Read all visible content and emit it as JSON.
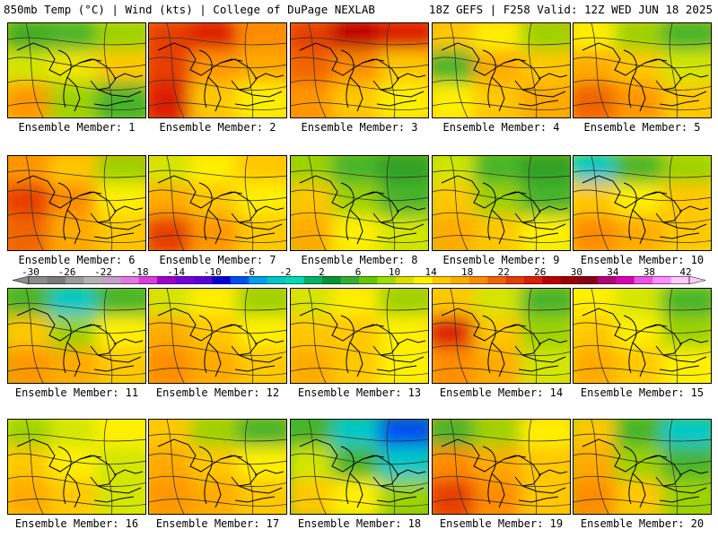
{
  "header": {
    "title": "850mb Temp (°C) | Wind (kts) | College of DuPage NEXLAB",
    "valid": "18Z GEFS | F258 Valid: 12Z WED JUN 18 2025"
  },
  "colorbar": {
    "labels": [
      "-30",
      "-26",
      "-22",
      "-18",
      "-14",
      "-10",
      "-6",
      "-2",
      "2",
      "6",
      "10",
      "14",
      "18",
      "22",
      "26",
      "30",
      "34",
      "38",
      "42"
    ],
    "colors": [
      "#8c8c8c",
      "#7a7a7a",
      "#9a9a9a",
      "#b4b4b4",
      "#c8a0c8",
      "#e178e1",
      "#dc3cdc",
      "#a000c8",
      "#7800dc",
      "#5a00dc",
      "#0000dc",
      "#0050f0",
      "#00a0f0",
      "#00c8c8",
      "#00dcb4",
      "#00b464",
      "#009632",
      "#32af32",
      "#64c800",
      "#a0dc00",
      "#dcdc00",
      "#fff000",
      "#ffc800",
      "#ffaa00",
      "#ff8c00",
      "#f06400",
      "#e63c00",
      "#dc1e00",
      "#be0000",
      "#a00000",
      "#8c0014",
      "#b4007a",
      "#dc00b4",
      "#f050e6",
      "#ff8cff",
      "#ffc8ff"
    ]
  },
  "panels": [
    {
      "label": "Ensemble Member: 1",
      "colors": [
        "#3caa28",
        "#46b42c",
        "#9cd200",
        "#d2e600",
        "#f0e600",
        "#ffc800",
        "#ff9600",
        "#9cd200",
        "#46b42c"
      ]
    },
    {
      "label": "Ensemble Member: 2",
      "colors": [
        "#e63c00",
        "#dc1e00",
        "#ff8c00",
        "#e63c00",
        "#ff9600",
        "#ffaa00",
        "#dc1e00",
        "#ffc800",
        "#fff000"
      ]
    },
    {
      "label": "Ensemble Member: 3",
      "colors": [
        "#e63c00",
        "#be0000",
        "#dc1e00",
        "#f06400",
        "#ff8c00",
        "#ffc800",
        "#ff9600",
        "#ffc800",
        "#fff000"
      ]
    },
    {
      "label": "Ensemble Member: 4",
      "colors": [
        "#ffc800",
        "#fff000",
        "#9cd200",
        "#46b42c",
        "#ffaa00",
        "#ffc800",
        "#fff000",
        "#ffc800",
        "#ffaa00"
      ]
    },
    {
      "label": "Ensemble Member: 5",
      "colors": [
        "#fff000",
        "#9cd200",
        "#46b42c",
        "#ffaa00",
        "#ffc800",
        "#d2e600",
        "#f06400",
        "#ff9600",
        "#ffc800"
      ]
    },
    {
      "label": "Ensemble Member: 6",
      "colors": [
        "#ff9600",
        "#ffc800",
        "#9cd200",
        "#e63c00",
        "#ff8c00",
        "#fff000",
        "#f06400",
        "#ffaa00",
        "#ffc800"
      ]
    },
    {
      "label": "Ensemble Member: 7",
      "colors": [
        "#d2e600",
        "#fff000",
        "#ffc800",
        "#ffaa00",
        "#ffc800",
        "#fff000",
        "#e63c00",
        "#ff9600",
        "#ffc800"
      ]
    },
    {
      "label": "Ensemble Member: 8",
      "colors": [
        "#9cd200",
        "#46b42c",
        "#32a028",
        "#ffc800",
        "#9cd200",
        "#46b42c",
        "#ffaa00",
        "#fff000",
        "#d2e600"
      ]
    },
    {
      "label": "Ensemble Member: 9",
      "colors": [
        "#d2e600",
        "#46b42c",
        "#32a028",
        "#ffc800",
        "#9cd200",
        "#46b42c",
        "#ffaa00",
        "#ffc800",
        "#fff000"
      ]
    },
    {
      "label": "Ensemble Member: 10",
      "colors": [
        "#00c8c8",
        "#46b42c",
        "#9cd200",
        "#ffc800",
        "#fff000",
        "#ffc800",
        "#ff8c00",
        "#ffaa00",
        "#ffc800"
      ]
    },
    {
      "label": "Ensemble Member: 11",
      "colors": [
        "#46b42c",
        "#00c8c8",
        "#46b42c",
        "#ffc800",
        "#9cd200",
        "#fff000",
        "#ff9600",
        "#ffaa00",
        "#ffc800"
      ]
    },
    {
      "label": "Ensemble Member: 12",
      "colors": [
        "#d2e600",
        "#fff000",
        "#9cd200",
        "#ffaa00",
        "#ffc800",
        "#fff000",
        "#ff8c00",
        "#ffaa00",
        "#ffc800"
      ]
    },
    {
      "label": "Ensemble Member: 13",
      "colors": [
        "#d2e600",
        "#fff000",
        "#9cd200",
        "#ffc800",
        "#ffc800",
        "#fff000",
        "#ffaa00",
        "#ffc800",
        "#fff000"
      ]
    },
    {
      "label": "Ensemble Member: 14",
      "colors": [
        "#ffc800",
        "#d2e600",
        "#46b42c",
        "#dc1e00",
        "#ffc800",
        "#9cd200",
        "#ff8c00",
        "#ffaa00",
        "#d2e600"
      ]
    },
    {
      "label": "Ensemble Member: 15",
      "colors": [
        "#fff000",
        "#d2e600",
        "#46b42c",
        "#ffc800",
        "#fff000",
        "#9cd200",
        "#ffaa00",
        "#ffc800",
        "#fff000"
      ]
    },
    {
      "label": "Ensemble Member: 16",
      "colors": [
        "#9cd200",
        "#d2e600",
        "#fff000",
        "#ffc800",
        "#fff000",
        "#d2e600",
        "#ffaa00",
        "#ffc800",
        "#d2e600"
      ]
    },
    {
      "label": "Ensemble Member: 17",
      "colors": [
        "#ffc800",
        "#9cd200",
        "#46b42c",
        "#ffaa00",
        "#ffc800",
        "#fff000",
        "#ff9600",
        "#ffaa00",
        "#ffc800"
      ]
    },
    {
      "label": "Ensemble Member: 18",
      "colors": [
        "#46b42c",
        "#00c8c8",
        "#0050f0",
        "#d2e600",
        "#46b42c",
        "#00c8c8",
        "#ffc800",
        "#fff000",
        "#9cd200"
      ]
    },
    {
      "label": "Ensemble Member: 19",
      "colors": [
        "#46b42c",
        "#9cd200",
        "#fff000",
        "#ff8c00",
        "#ffaa00",
        "#ffc800",
        "#e63c00",
        "#ff8c00",
        "#ffc800"
      ]
    },
    {
      "label": "Ensemble Member: 20",
      "colors": [
        "#ffc800",
        "#46b42c",
        "#00c8c8",
        "#ffaa00",
        "#9cd200",
        "#46b42c",
        "#ff8c00",
        "#ffc800",
        "#9cd200"
      ]
    }
  ]
}
